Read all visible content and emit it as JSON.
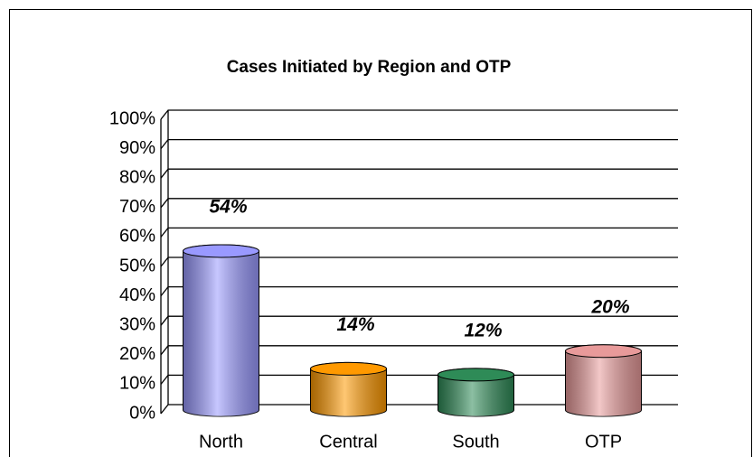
{
  "chart_data": {
    "type": "bar",
    "title": "Cases Initiated by Region and OTP",
    "categories": [
      "North",
      "Central",
      "South",
      "OTP"
    ],
    "values": [
      54,
      14,
      12,
      20
    ],
    "value_labels": [
      "54%",
      "14%",
      "12%",
      "20%"
    ],
    "colors": [
      "#9999ff",
      "#ff9900",
      "#2e8b57",
      "#e89a9a"
    ],
    "ylim": [
      0,
      100
    ],
    "yticks": [
      {
        "value": 0,
        "label": "0%"
      },
      {
        "value": 10,
        "label": "10%"
      },
      {
        "value": 20,
        "label": "20%"
      },
      {
        "value": 30,
        "label": "30%"
      },
      {
        "value": 40,
        "label": "40%"
      },
      {
        "value": 50,
        "label": "50%"
      },
      {
        "value": 60,
        "label": "60%"
      },
      {
        "value": 70,
        "label": "70%"
      },
      {
        "value": 80,
        "label": "80%"
      },
      {
        "value": 90,
        "label": "90%"
      },
      {
        "value": 100,
        "label": "100%"
      }
    ],
    "grid": true
  }
}
